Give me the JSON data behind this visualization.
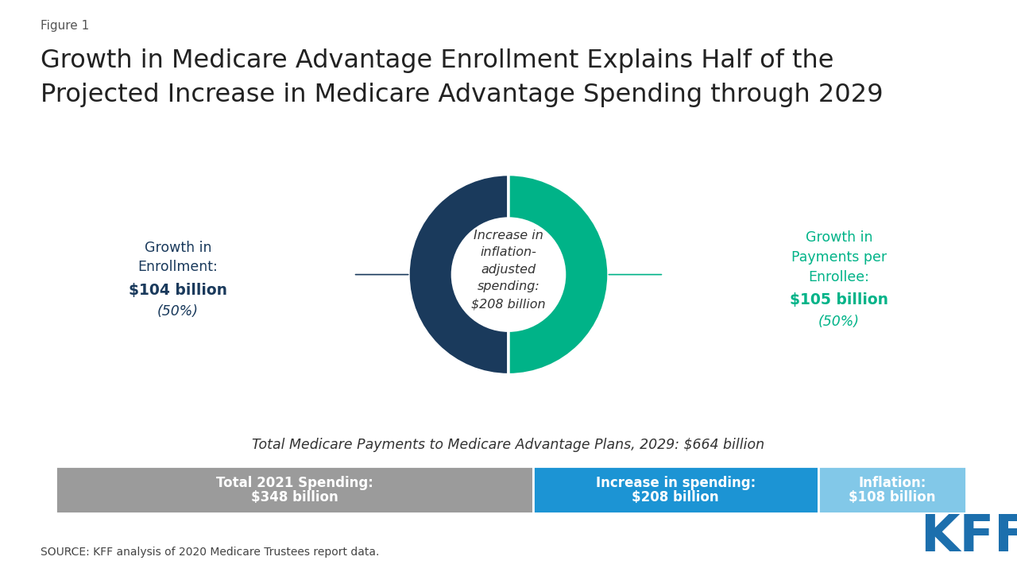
{
  "figure_label": "Figure 1",
  "title_line1": "Growth in Medicare Advantage Enrollment Explains Half of the",
  "title_line2": "Projected Increase in Medicare Advantage Spending through 2029",
  "donut_values": [
    50,
    50
  ],
  "donut_colors": [
    "#1a3a5c",
    "#00b388"
  ],
  "donut_center_text": "Increase in\ninflation-\nadjusted\nspending:\n$208 billion",
  "left_label_line1": "Growth in",
  "left_label_line2": "Enrollment:",
  "left_label_bold": "$104 billion",
  "left_label_pct": "(50%)",
  "left_label_color": "#1a3a5c",
  "right_label_line1": "Growth in",
  "right_label_line2": "Payments per",
  "right_label_line3": "Enrollee:",
  "right_label_bold": "$105 billion",
  "right_label_pct": "(50%)",
  "right_label_color": "#00b388",
  "bar_subtitle": "Total Medicare Payments to Medicare Advantage Plans, 2029: $664 billion",
  "bar_seg1_label1": "Total 2021 Spending:",
  "bar_seg1_label2": "$348 billion",
  "bar_seg1_color": "#9b9b9b",
  "bar_seg2_label1": "Increase in spending:",
  "bar_seg2_label2": "$208 billion",
  "bar_seg2_color": "#1c94d4",
  "bar_seg3_label1": "Inflation:",
  "bar_seg3_label2": "$108 billion",
  "bar_seg3_color": "#82c8e8",
  "bar_values": [
    348,
    208,
    108
  ],
  "source_text": "SOURCE: KFF analysis of 2020 Medicare Trustees report data.",
  "background_color": "#ffffff",
  "kff_color": "#1c6fad"
}
